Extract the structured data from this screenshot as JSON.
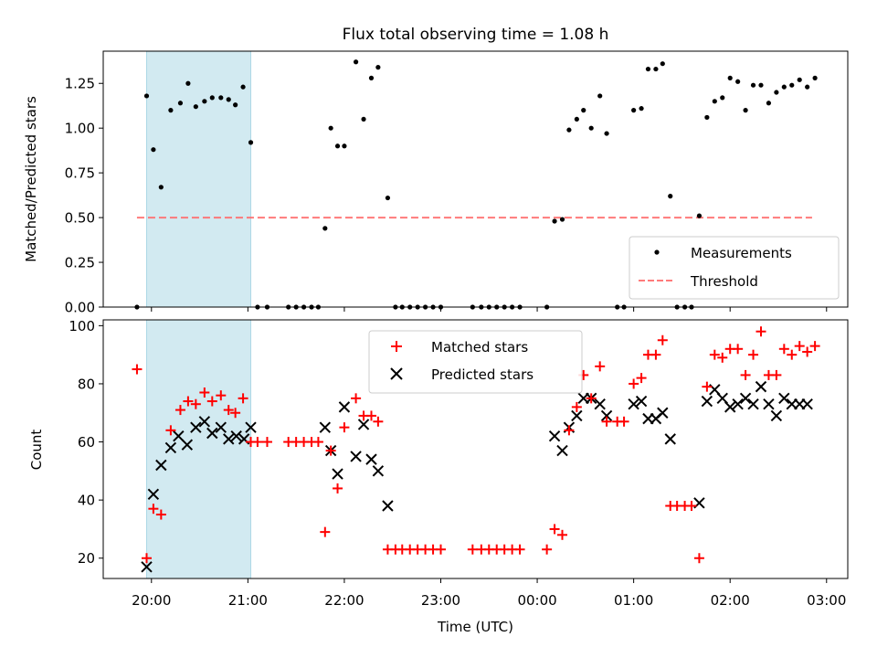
{
  "chart_data": [
    {
      "type": "scatter",
      "title": "Flux total observing time = 1.08 h",
      "xlabel": "",
      "ylabel": "Matched/Predicted stars",
      "ylim": [
        0,
        1.43
      ],
      "yticks": [
        0.0,
        0.25,
        0.5,
        0.75,
        1.0,
        1.25
      ],
      "ytick_labels": [
        "0.00",
        "0.25",
        "0.50",
        "0.75",
        "1.00",
        "1.25"
      ],
      "x_unit": "hours since 20:00 UTC",
      "xlim": [
        -0.5,
        7.22
      ],
      "highlight_span": [
        -0.05,
        1.03
      ],
      "highlight_color": "#add8e6",
      "threshold": {
        "value": 0.5,
        "x_range": [
          -0.15,
          6.85
        ],
        "color": "#ff6b6b"
      },
      "legend_position": "lower right",
      "series": [
        {
          "name": "Measurements",
          "marker": "dot",
          "color": "#000000",
          "x": [
            -0.15,
            -0.05,
            0.02,
            0.1,
            0.2,
            0.3,
            0.38,
            0.46,
            0.55,
            0.63,
            0.72,
            0.8,
            0.87,
            0.95,
            1.03,
            1.1,
            1.2,
            1.42,
            1.5,
            1.58,
            1.66,
            1.73,
            1.8,
            1.86,
            1.93,
            2.0,
            2.12,
            2.2,
            2.28,
            2.35,
            2.45,
            2.53,
            2.6,
            2.68,
            2.76,
            2.84,
            2.92,
            3.0,
            3.33,
            3.42,
            3.5,
            3.58,
            3.66,
            3.74,
            3.82,
            4.1,
            4.18,
            4.26,
            4.33,
            4.41,
            4.48,
            4.56,
            4.65,
            4.72,
            4.83,
            4.9,
            5.0,
            5.08,
            5.15,
            5.23,
            5.3,
            5.38,
            5.45,
            5.53,
            5.6,
            5.68,
            5.76,
            5.84,
            5.92,
            6.0,
            6.08,
            6.16,
            6.24,
            6.32,
            6.4,
            6.48,
            6.56,
            6.64,
            6.72,
            6.8,
            6.88
          ],
          "y": [
            0.0,
            1.18,
            0.88,
            0.67,
            1.1,
            1.14,
            1.25,
            1.12,
            1.15,
            1.17,
            1.17,
            1.16,
            1.13,
            1.23,
            0.92,
            0.0,
            0.0,
            0.0,
            0.0,
            0.0,
            0.0,
            0.0,
            0.44,
            1.0,
            0.9,
            0.9,
            1.37,
            1.05,
            1.28,
            1.34,
            0.61,
            0.0,
            0.0,
            0.0,
            0.0,
            0.0,
            0.0,
            0.0,
            0.0,
            0.0,
            0.0,
            0.0,
            0.0,
            0.0,
            0.0,
            0.0,
            0.48,
            0.49,
            0.99,
            1.05,
            1.1,
            1.0,
            1.18,
            0.97,
            0.0,
            0.0,
            1.1,
            1.11,
            1.33,
            1.33,
            1.36,
            0.62,
            0.0,
            0.0,
            0.0,
            0.51,
            1.06,
            1.15,
            1.17,
            1.28,
            1.26,
            1.1,
            1.24,
            1.24,
            1.14,
            1.2,
            1.23,
            1.24,
            1.27,
            1.23,
            1.28
          ]
        },
        {
          "name": "Threshold",
          "marker": "dashed-line",
          "color": "#ff6b6b"
        }
      ]
    },
    {
      "type": "scatter",
      "title": "",
      "xlabel": "Time (UTC)",
      "ylabel": "Count",
      "ylim": [
        13,
        102
      ],
      "yticks": [
        20,
        40,
        60,
        80,
        100
      ],
      "ytick_labels": [
        "20",
        "40",
        "60",
        "80",
        "100"
      ],
      "x_unit": "hours since 20:00 UTC",
      "xlim": [
        -0.5,
        7.22
      ],
      "xticks": [
        0,
        1,
        2,
        3,
        4,
        5,
        6,
        7
      ],
      "xtick_labels": [
        "20:00",
        "21:00",
        "22:00",
        "23:00",
        "00:00",
        "01:00",
        "02:00",
        "03:00"
      ],
      "highlight_span": [
        -0.05,
        1.03
      ],
      "highlight_color": "#add8e6",
      "legend_position": "upper center",
      "series": [
        {
          "name": "Matched stars",
          "marker": "plus",
          "color": "#ff0000",
          "x": [
            -0.15,
            -0.05,
            0.02,
            0.1,
            0.2,
            0.3,
            0.38,
            0.46,
            0.55,
            0.63,
            0.72,
            0.8,
            0.87,
            0.95,
            1.03,
            1.1,
            1.2,
            1.42,
            1.5,
            1.58,
            1.66,
            1.73,
            1.8,
            1.86,
            1.93,
            2.0,
            2.12,
            2.2,
            2.28,
            2.35,
            2.45,
            2.53,
            2.6,
            2.68,
            2.76,
            2.84,
            2.92,
            3.0,
            3.33,
            3.42,
            3.5,
            3.58,
            3.66,
            3.74,
            3.82,
            4.1,
            4.18,
            4.26,
            4.33,
            4.41,
            4.48,
            4.56,
            4.65,
            4.72,
            4.83,
            4.9,
            5.0,
            5.08,
            5.15,
            5.23,
            5.3,
            5.38,
            5.45,
            5.53,
            5.6,
            5.68,
            5.76,
            5.84,
            5.92,
            6.0,
            6.08,
            6.16,
            6.24,
            6.32,
            6.4,
            6.48,
            6.56,
            6.64,
            6.72,
            6.8,
            6.88
          ],
          "y": [
            85,
            20,
            37,
            35,
            64,
            71,
            74,
            73,
            77,
            74,
            76,
            71,
            70,
            75,
            60,
            60,
            60,
            60,
            60,
            60,
            60,
            60,
            29,
            57,
            44,
            65,
            75,
            69,
            69,
            67,
            23,
            23,
            23,
            23,
            23,
            23,
            23,
            23,
            23,
            23,
            23,
            23,
            23,
            23,
            23,
            23,
            30,
            28,
            64,
            72,
            83,
            75,
            86,
            67,
            67,
            67,
            80,
            82,
            90,
            90,
            95,
            38,
            38,
            38,
            38,
            20,
            79,
            90,
            89,
            92,
            92,
            83,
            90,
            98,
            83,
            83,
            92,
            90,
            93,
            91,
            93
          ]
        },
        {
          "name": "Predicted stars",
          "marker": "x",
          "color": "#000000",
          "x": [
            -0.05,
            0.02,
            0.1,
            0.2,
            0.28,
            0.37,
            0.46,
            0.55,
            0.63,
            0.72,
            0.8,
            0.88,
            0.96,
            1.03,
            1.8,
            1.86,
            1.93,
            2.0,
            2.12,
            2.2,
            2.28,
            2.35,
            2.45,
            4.18,
            4.26,
            4.33,
            4.41,
            4.48,
            4.56,
            4.65,
            4.72,
            5.0,
            5.08,
            5.15,
            5.23,
            5.3,
            5.38,
            5.68,
            5.76,
            5.84,
            5.92,
            6.0,
            6.08,
            6.16,
            6.24,
            6.32,
            6.4,
            6.48,
            6.56,
            6.64,
            6.72,
            6.8
          ],
          "y": [
            17,
            42,
            52,
            58,
            62,
            59,
            65,
            67,
            63,
            65,
            61,
            62,
            61,
            65,
            65,
            57,
            49,
            72,
            55,
            66,
            54,
            50,
            38,
            62,
            57,
            65,
            69,
            75,
            75,
            73,
            69,
            73,
            74,
            68,
            68,
            70,
            61,
            39,
            74,
            78,
            75,
            72,
            73,
            75,
            73,
            79,
            73,
            69,
            75,
            73,
            73,
            73
          ]
        }
      ]
    }
  ]
}
